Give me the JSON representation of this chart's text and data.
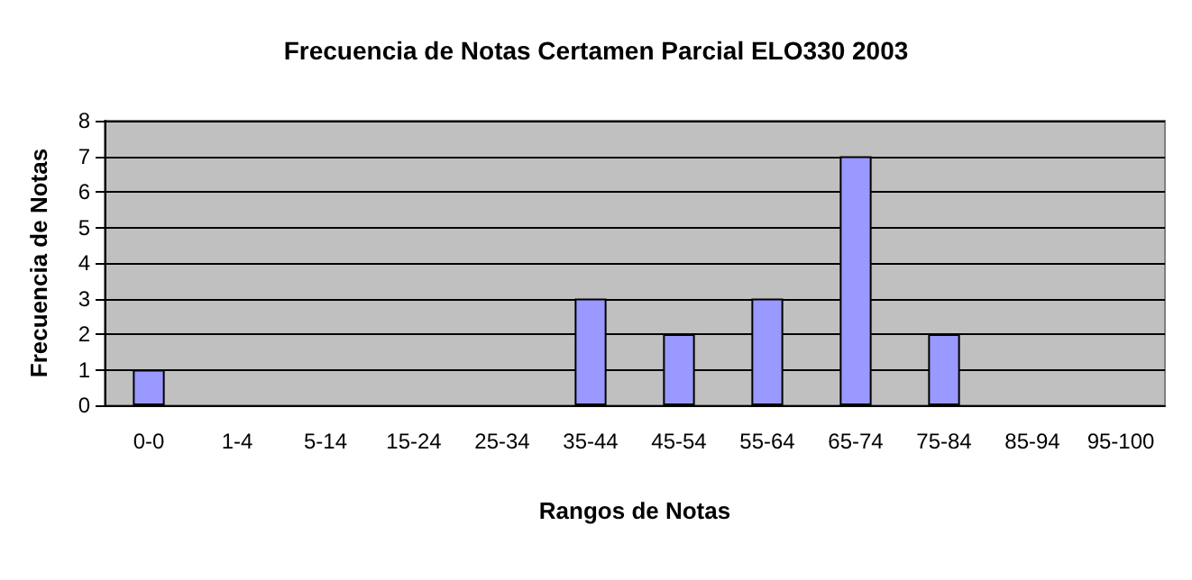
{
  "chart_data": {
    "type": "bar",
    "title": "Frecuencia de Notas Certamen Parcial ELO330 2003",
    "xlabel": "Rangos de Notas",
    "ylabel": "Frecuencia de Notas",
    "categories": [
      "0-0",
      "1-4",
      "5-14",
      "15-24",
      "25-34",
      "35-44",
      "45-54",
      "55-64",
      "65-74",
      "75-84",
      "85-94",
      "95-100"
    ],
    "values": [
      1,
      0,
      0,
      0,
      0,
      3,
      2,
      3,
      7,
      2,
      0,
      0
    ],
    "color": "#9999ff",
    "ylim": [
      0,
      8
    ],
    "yticks": [
      0,
      1,
      2,
      3,
      4,
      5,
      6,
      7,
      8
    ],
    "grid": "y"
  }
}
